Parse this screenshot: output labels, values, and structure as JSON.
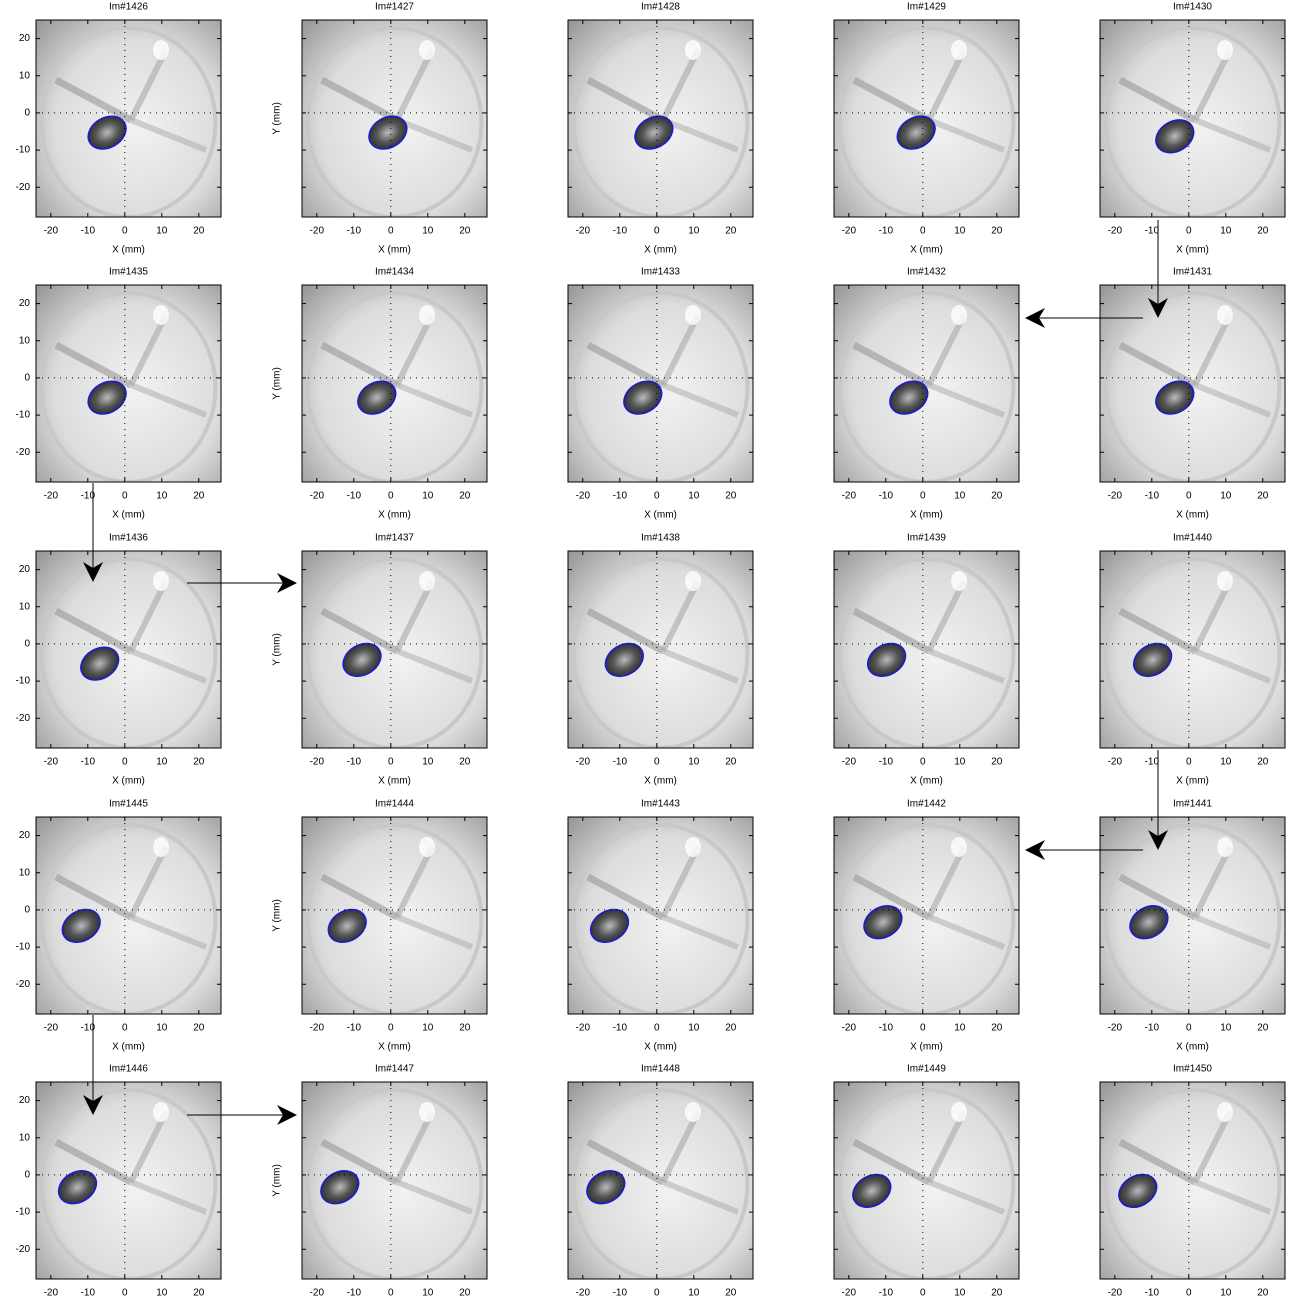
{
  "chart_data": [
    {
      "type": "image",
      "title": "Im#1426",
      "xlim": [
        -24,
        26
      ],
      "ylim": [
        -28,
        25
      ],
      "xticks": [
        -20,
        -10,
        0,
        10,
        20
      ],
      "yticks": [
        -20,
        -10,
        0,
        10,
        20
      ],
      "show_yticklabels": true,
      "xlabel": "X (mm)"
    },
    {
      "type": "image",
      "title": "Im#1427",
      "xlim": [
        -24,
        26
      ],
      "ylim": [
        -28,
        25
      ],
      "xticks": [
        -20,
        -10,
        0,
        10,
        20
      ],
      "yticks": [
        -20,
        -10,
        0,
        10,
        20
      ],
      "show_yticklabels": false,
      "xlabel": "X (mm)",
      "ylabel": "Y (mm)"
    },
    {
      "type": "image",
      "title": "Im#1428",
      "xlim": [
        -24,
        26
      ],
      "ylim": [
        -28,
        25
      ],
      "xticks": [
        -20,
        -10,
        0,
        10,
        20
      ],
      "yticks": [
        -20,
        -10,
        0,
        10,
        20
      ],
      "show_yticklabels": false,
      "xlabel": "X (mm)"
    },
    {
      "type": "image",
      "title": "Im#1429",
      "xlim": [
        -24,
        26
      ],
      "ylim": [
        -28,
        25
      ],
      "xticks": [
        -20,
        -10,
        0,
        10,
        20
      ],
      "yticks": [
        -20,
        -10,
        0,
        10,
        20
      ],
      "show_yticklabels": false,
      "xlabel": "X (mm)"
    },
    {
      "type": "image",
      "title": "Im#1430",
      "xlim": [
        -24,
        26
      ],
      "ylim": [
        -28,
        25
      ],
      "xticks": [
        -20,
        -10,
        0,
        10,
        20
      ],
      "yticks": [
        -20,
        -10,
        0,
        10,
        20
      ],
      "show_yticklabels": false,
      "xlabel": "X (mm)"
    },
    {
      "type": "image",
      "title": "Im#1435",
      "xlim": [
        -24,
        26
      ],
      "ylim": [
        -28,
        25
      ],
      "xticks": [
        -20,
        -10,
        0,
        10,
        20
      ],
      "yticks": [
        -20,
        -10,
        0,
        10,
        20
      ],
      "show_yticklabels": true,
      "xlabel": "X (mm)"
    },
    {
      "type": "image",
      "title": "Im#1434",
      "xlim": [
        -24,
        26
      ],
      "ylim": [
        -28,
        25
      ],
      "xticks": [
        -20,
        -10,
        0,
        10,
        20
      ],
      "yticks": [
        -20,
        -10,
        0,
        10,
        20
      ],
      "show_yticklabels": false,
      "xlabel": "X (mm)",
      "ylabel": "Y (mm)"
    },
    {
      "type": "image",
      "title": "Im#1433",
      "xlim": [
        -24,
        26
      ],
      "ylim": [
        -28,
        25
      ],
      "xticks": [
        -20,
        -10,
        0,
        10,
        20
      ],
      "yticks": [
        -20,
        -10,
        0,
        10,
        20
      ],
      "show_yticklabels": false,
      "xlabel": "X (mm)"
    },
    {
      "type": "image",
      "title": "Im#1432",
      "xlim": [
        -24,
        26
      ],
      "ylim": [
        -28,
        25
      ],
      "xticks": [
        -20,
        -10,
        0,
        10,
        20
      ],
      "yticks": [
        -20,
        -10,
        0,
        10,
        20
      ],
      "show_yticklabels": false,
      "xlabel": "X (mm)"
    },
    {
      "type": "image",
      "title": "Im#1431",
      "xlim": [
        -24,
        26
      ],
      "ylim": [
        -28,
        25
      ],
      "xticks": [
        -20,
        -10,
        0,
        10,
        20
      ],
      "yticks": [
        -20,
        -10,
        0,
        10,
        20
      ],
      "show_yticklabels": false,
      "xlabel": "X (mm)"
    },
    {
      "type": "image",
      "title": "Im#1436",
      "xlim": [
        -24,
        26
      ],
      "ylim": [
        -28,
        25
      ],
      "xticks": [
        -20,
        -10,
        0,
        10,
        20
      ],
      "yticks": [
        -20,
        -10,
        0,
        10,
        20
      ],
      "show_yticklabels": true,
      "xlabel": "X (mm)"
    },
    {
      "type": "image",
      "title": "Im#1437",
      "xlim": [
        -24,
        26
      ],
      "ylim": [
        -28,
        25
      ],
      "xticks": [
        -20,
        -10,
        0,
        10,
        20
      ],
      "yticks": [
        -20,
        -10,
        0,
        10,
        20
      ],
      "show_yticklabels": false,
      "xlabel": "X (mm)",
      "ylabel": "Y (mm)"
    },
    {
      "type": "image",
      "title": "Im#1438",
      "xlim": [
        -24,
        26
      ],
      "ylim": [
        -28,
        25
      ],
      "xticks": [
        -20,
        -10,
        0,
        10,
        20
      ],
      "yticks": [
        -20,
        -10,
        0,
        10,
        20
      ],
      "show_yticklabels": false,
      "xlabel": "X (mm)"
    },
    {
      "type": "image",
      "title": "Im#1439",
      "xlim": [
        -24,
        26
      ],
      "ylim": [
        -28,
        25
      ],
      "xticks": [
        -20,
        -10,
        0,
        10,
        20
      ],
      "yticks": [
        -20,
        -10,
        0,
        10,
        20
      ],
      "show_yticklabels": false,
      "xlabel": "X (mm)"
    },
    {
      "type": "image",
      "title": "Im#1440",
      "xlim": [
        -24,
        26
      ],
      "ylim": [
        -28,
        25
      ],
      "xticks": [
        -20,
        -10,
        0,
        10,
        20
      ],
      "yticks": [
        -20,
        -10,
        0,
        10,
        20
      ],
      "show_yticklabels": false,
      "xlabel": "X (mm)"
    },
    {
      "type": "image",
      "title": "Im#1445",
      "xlim": [
        -24,
        26
      ],
      "ylim": [
        -28,
        25
      ],
      "xticks": [
        -20,
        -10,
        0,
        10,
        20
      ],
      "yticks": [
        -20,
        -10,
        0,
        10,
        20
      ],
      "show_yticklabels": true,
      "xlabel": "X (mm)"
    },
    {
      "type": "image",
      "title": "Im#1444",
      "xlim": [
        -24,
        26
      ],
      "ylim": [
        -28,
        25
      ],
      "xticks": [
        -20,
        -10,
        0,
        10,
        20
      ],
      "yticks": [
        -20,
        -10,
        0,
        10,
        20
      ],
      "show_yticklabels": false,
      "xlabel": "X (mm)",
      "ylabel": "Y (mm)"
    },
    {
      "type": "image",
      "title": "Im#1443",
      "xlim": [
        -24,
        26
      ],
      "ylim": [
        -28,
        25
      ],
      "xticks": [
        -20,
        -10,
        0,
        10,
        20
      ],
      "yticks": [
        -20,
        -10,
        0,
        10,
        20
      ],
      "show_yticklabels": false,
      "xlabel": "X (mm)"
    },
    {
      "type": "image",
      "title": "Im#1442",
      "xlim": [
        -24,
        26
      ],
      "ylim": [
        -28,
        25
      ],
      "xticks": [
        -20,
        -10,
        0,
        10,
        20
      ],
      "yticks": [
        -20,
        -10,
        0,
        10,
        20
      ],
      "show_yticklabels": false,
      "xlabel": "X (mm)"
    },
    {
      "type": "image",
      "title": "Im#1441",
      "xlim": [
        -24,
        26
      ],
      "ylim": [
        -28,
        25
      ],
      "xticks": [
        -20,
        -10,
        0,
        10,
        20
      ],
      "yticks": [
        -20,
        -10,
        0,
        10,
        20
      ],
      "show_yticklabels": false,
      "xlabel": "X (mm)"
    },
    {
      "type": "image",
      "title": "Im#1446",
      "xlim": [
        -24,
        26
      ],
      "ylim": [
        -28,
        25
      ],
      "xticks": [
        -20,
        -10,
        0,
        10,
        20
      ],
      "yticks": [
        -20,
        -10,
        0,
        10,
        20
      ],
      "show_yticklabels": true
    },
    {
      "type": "image",
      "title": "Im#1447",
      "xlim": [
        -24,
        26
      ],
      "ylim": [
        -28,
        25
      ],
      "xticks": [
        -20,
        -10,
        0,
        10,
        20
      ],
      "yticks": [
        -20,
        -10,
        0,
        10,
        20
      ],
      "show_yticklabels": false,
      "ylabel": "Y (mm)"
    },
    {
      "type": "image",
      "title": "Im#1448",
      "xlim": [
        -24,
        26
      ],
      "ylim": [
        -28,
        25
      ],
      "xticks": [
        -20,
        -10,
        0,
        10,
        20
      ],
      "yticks": [
        -20,
        -10,
        0,
        10,
        20
      ],
      "show_yticklabels": false
    },
    {
      "type": "image",
      "title": "Im#1449",
      "xlim": [
        -24,
        26
      ],
      "ylim": [
        -28,
        25
      ],
      "xticks": [
        -20,
        -10,
        0,
        10,
        20
      ],
      "yticks": [
        -20,
        -10,
        0,
        10,
        20
      ],
      "show_yticklabels": false
    },
    {
      "type": "image",
      "title": "Im#1450",
      "xlim": [
        -24,
        26
      ],
      "ylim": [
        -28,
        25
      ],
      "xticks": [
        -20,
        -10,
        0,
        10,
        20
      ],
      "yticks": [
        -20,
        -10,
        0,
        10,
        20
      ],
      "show_yticklabels": false
    }
  ]
}
